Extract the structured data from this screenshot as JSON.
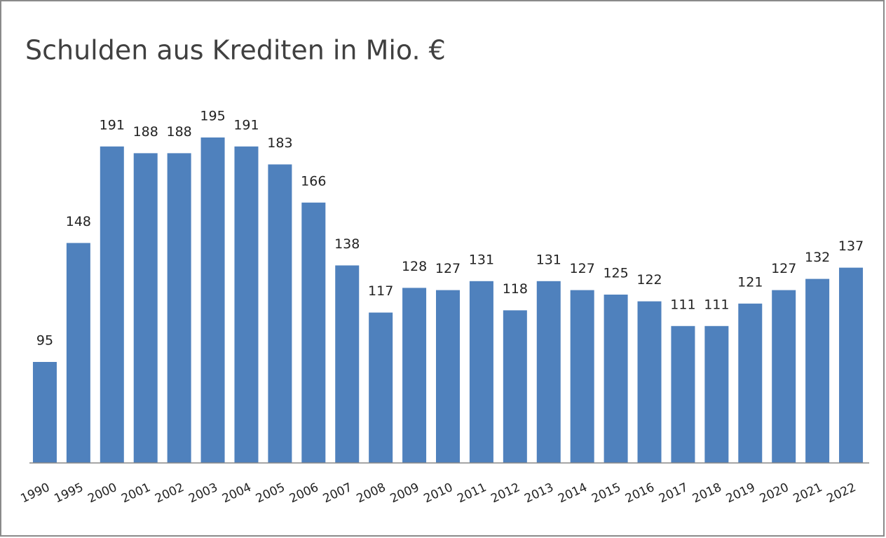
{
  "chart_data": {
    "type": "bar",
    "title": "Schulden aus Krediten in Mio. €",
    "categories": [
      "1990",
      "1995",
      "2000",
      "2001",
      "2002",
      "2003",
      "2004",
      "2005",
      "2006",
      "2007",
      "2008",
      "2009",
      "2010",
      "2011",
      "2012",
      "2013",
      "2014",
      "2015",
      "2016",
      "2017",
      "2018",
      "2019",
      "2020",
      "2021",
      "2022"
    ],
    "values": [
      95,
      148,
      191,
      188,
      188,
      195,
      191,
      183,
      166,
      138,
      117,
      128,
      127,
      131,
      118,
      131,
      127,
      125,
      122,
      111,
      111,
      121,
      127,
      132,
      137
    ],
    "color": "#4f81bd",
    "ylim": [
      50,
      200
    ]
  }
}
